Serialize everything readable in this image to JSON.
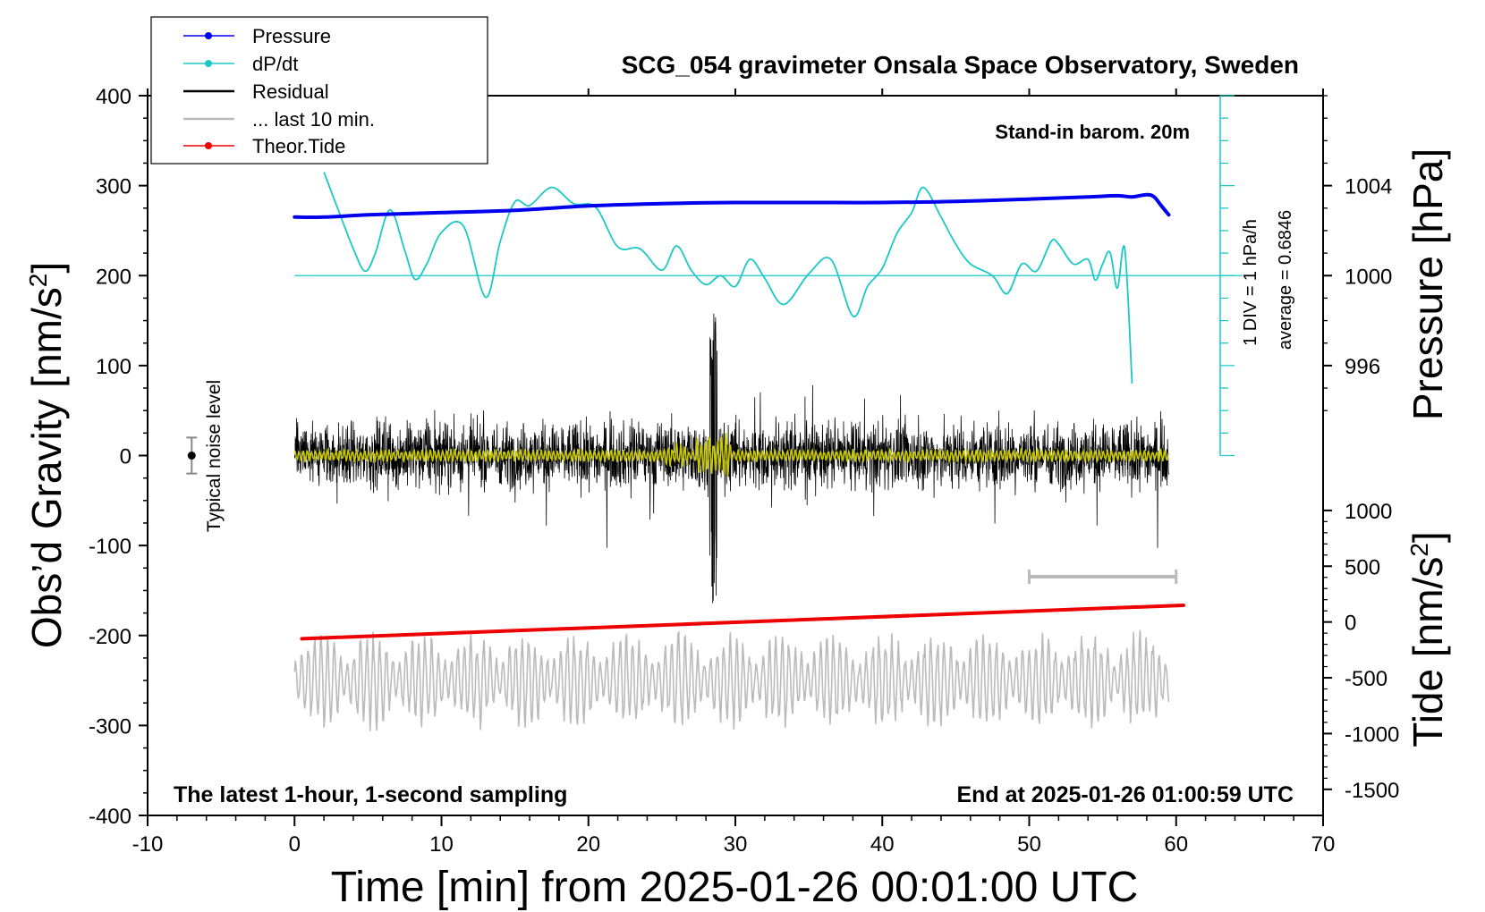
{
  "chart_data": {
    "type": "line",
    "title": "SCG_054 gravimeter Onsala Space Observatory, Sweden",
    "xlabel": "Time [min] from 2025-01-26 00:01:00 UTC",
    "xlim": [
      -10,
      70
    ],
    "x_ticks": [
      "-10",
      "0",
      "10",
      "20",
      "30",
      "40",
      "50",
      "60",
      "70"
    ],
    "left_axis": {
      "label_main": "Obs’d Gravity [nm/s",
      "label_sup": "2",
      "label_end": "]",
      "ylim": [
        -400,
        400
      ],
      "ticks": [
        "-400",
        "-300",
        "-200",
        "-100",
        "0",
        "100",
        "200",
        "300",
        "400"
      ]
    },
    "pressure_axis": {
      "label": "Pressure [hPa]",
      "ticks": [
        "996",
        "1000",
        "1004"
      ],
      "tick_values": [
        996,
        1000,
        1004
      ]
    },
    "tide_axis": {
      "label_main": "Tide [nm/s",
      "label_sup": "2",
      "label_end": "]",
      "ticks": [
        "-1500",
        "-1000",
        "-500",
        "0",
        "500",
        "1000"
      ],
      "tick_values": [
        -1500,
        -1000,
        -500,
        0,
        500,
        1000
      ]
    },
    "legend": {
      "position": "top-left",
      "entries": [
        {
          "name": "Pressure",
          "color": "#0000ee",
          "marker": "dot"
        },
        {
          "name": "dP/dt",
          "color": "#1ac8c8",
          "marker": "dot"
        },
        {
          "name": "Residual",
          "color": "#000000",
          "marker": "line"
        },
        {
          "name": "... last 10 min.",
          "color": "#bbbbbb",
          "marker": "line"
        },
        {
          "name": "Theor.Tide",
          "color": "#ee0000",
          "marker": "dot"
        }
      ]
    },
    "annotations": {
      "barometer": "Stand-in barom. 20m",
      "noise": "Typical noise level",
      "div": "1 DIV = 1 hPa/h",
      "average": "average = 0.6846",
      "sampling": "The latest 1-hour, 1-second sampling",
      "end": "End at 2025-01-26 01:00:59 UTC"
    },
    "series": [
      {
        "name": "Pressure",
        "unit": "hPa",
        "color": "#0000ee",
        "x": [
          0,
          2,
          5,
          10,
          15,
          20,
          25,
          30,
          35,
          40,
          45,
          50,
          54,
          56,
          57,
          58,
          58.5,
          59,
          59.5
        ],
        "values": [
          1002.6,
          1002.6,
          1002.7,
          1002.8,
          1002.9,
          1003.1,
          1003.2,
          1003.25,
          1003.25,
          1003.25,
          1003.3,
          1003.4,
          1003.5,
          1003.55,
          1003.5,
          1003.6,
          1003.5,
          1003.1,
          1002.7
        ]
      },
      {
        "name": "dP/dt",
        "unit": "nm/s2 (plot units)",
        "color": "#1ac8c8",
        "x": [
          2,
          3,
          4,
          4.8,
          5.5,
          6.5,
          7.5,
          8.2,
          9,
          10,
          11.5,
          13,
          14,
          15,
          16,
          17.5,
          19,
          20.5,
          22,
          23.5,
          25,
          26,
          27,
          28,
          29,
          30,
          31,
          32,
          33.3,
          35,
          36.5,
          38,
          39,
          40,
          41,
          42,
          42.8,
          44,
          45,
          46,
          47.5,
          48.5,
          49.5,
          50.5,
          51.5,
          52,
          53,
          54,
          54.5,
          55,
          55.5,
          56,
          56.5,
          57
        ],
        "values": [
          315,
          272,
          230,
          205,
          225,
          273,
          228,
          196,
          213,
          248,
          255,
          176,
          238,
          282,
          278,
          298,
          280,
          276,
          232,
          230,
          206,
          233,
          206,
          190,
          200,
          188,
          218,
          197,
          168,
          202,
          218,
          155,
          188,
          208,
          247,
          270,
          298,
          265,
          235,
          213,
          200,
          180,
          213,
          205,
          238,
          235,
          213,
          218,
          195,
          213,
          226,
          186,
          230,
          80
        ]
      },
      {
        "name": "Residual",
        "color": "#000000",
        "x_range": [
          0,
          59.5
        ],
        "level": 0,
        "typical_amplitude": 45,
        "spike_at_min": 28.5,
        "spike_range": [
          -170,
          162
        ]
      },
      {
        "name": "Residual (smoothed)",
        "color": "#c8c800",
        "x_range": [
          0,
          59.5
        ],
        "level": 0,
        "typical_amplitude": 5
      },
      {
        "name": "... last 10 min.",
        "color": "#bbbbbb",
        "x_range": [
          0,
          59.5
        ],
        "center": -250,
        "typical_amplitude": 45
      },
      {
        "name": "Theor.Tide",
        "unit": "nm/s2",
        "color": "#ee0000",
        "x": [
          0.5,
          60.5
        ],
        "values": [
          -150,
          150
        ]
      }
    ],
    "reference_lines": {
      "dPdt_zero": 200,
      "dPdt_div_axis_x_min": 63,
      "dPdt_div_axis_range": [
        0,
        400
      ],
      "last10_bar_min": [
        50,
        60
      ]
    },
    "noise_bar": {
      "x_min": -7,
      "center": 0,
      "half_range": 20
    }
  }
}
